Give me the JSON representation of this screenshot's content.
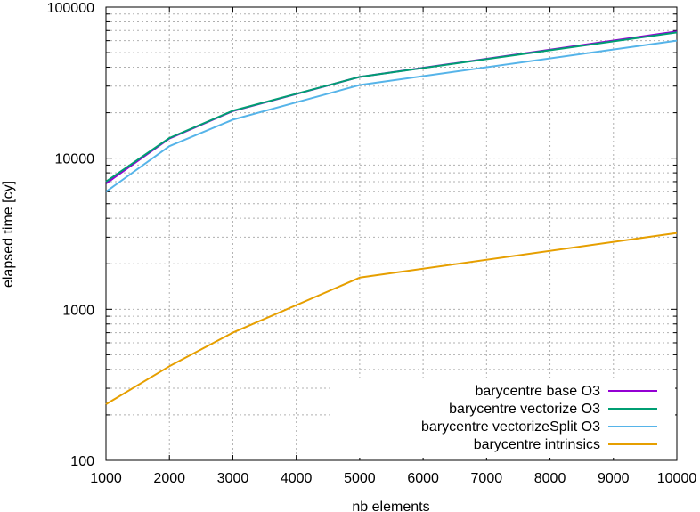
{
  "chart_data": {
    "type": "line",
    "title": "",
    "xlabel": "nb elements",
    "ylabel": "elapsed time [cy]",
    "xlim": [
      1000,
      10000
    ],
    "ylim": [
      100,
      100000
    ],
    "yscale": "log",
    "grid": true,
    "legend_position": "bottom-right",
    "x_ticks": [
      "1000",
      "2000",
      "3000",
      "4000",
      "5000",
      "6000",
      "7000",
      "8000",
      "9000",
      "10000"
    ],
    "y_ticks": [
      "100",
      "1000",
      "10000",
      "100000"
    ],
    "x": [
      1000,
      2000,
      3000,
      5000,
      10000
    ],
    "series": [
      {
        "name": "barycentre base O3",
        "color": "#9400d3",
        "values": [
          6800,
          13500,
          20500,
          34500,
          69000
        ]
      },
      {
        "name": "barycentre vectorize O3",
        "color": "#009e73",
        "values": [
          7000,
          13600,
          20600,
          34500,
          68000
        ]
      },
      {
        "name": "barycentre vectorizeSplit O3",
        "color": "#56b4e9",
        "values": [
          6000,
          12000,
          18000,
          30500,
          60000
        ]
      },
      {
        "name": "barycentre intrinsics",
        "color": "#e69f00",
        "values": [
          235,
          420,
          700,
          1620,
          3200
        ]
      }
    ]
  }
}
